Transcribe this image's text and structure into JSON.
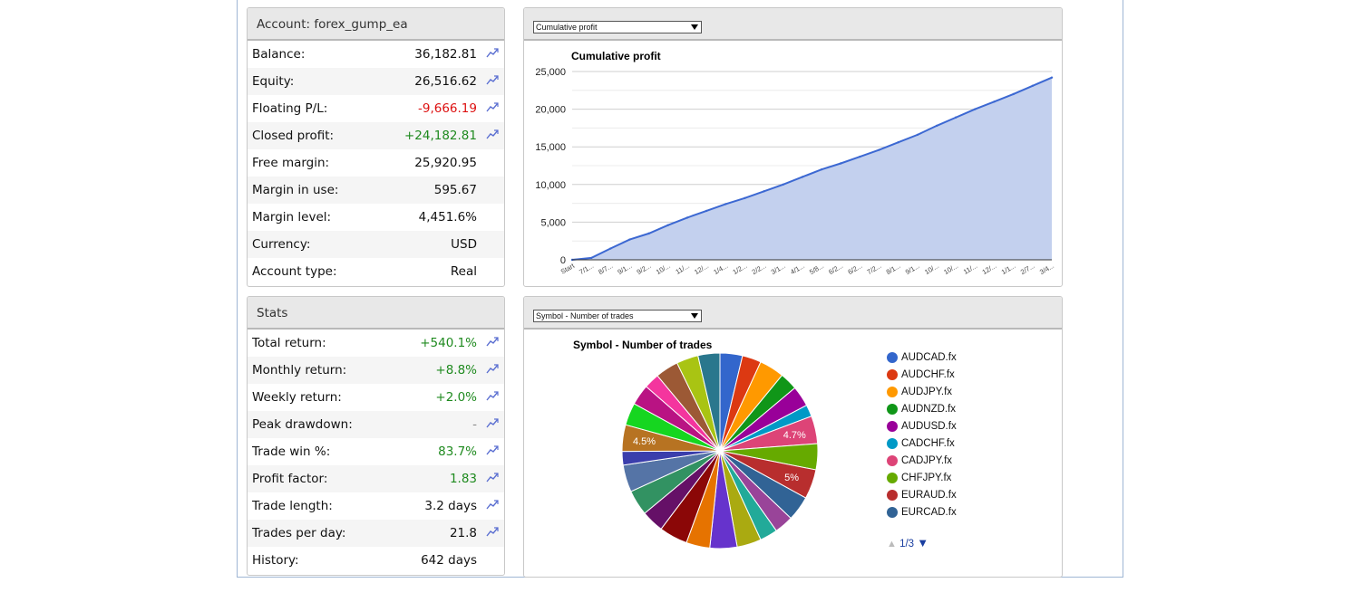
{
  "account": {
    "title": "Account: forex_gump_ea",
    "rows": [
      {
        "label": "Balance:",
        "value": "36,182.81",
        "tone": "",
        "icon": "chart-link-icon"
      },
      {
        "label": "Equity:",
        "value": "26,516.62",
        "tone": "",
        "icon": "chart-link-icon"
      },
      {
        "label": "Floating P/L:",
        "value": "-9,666.19",
        "tone": "neg",
        "icon": "chart-link-icon"
      },
      {
        "label": "Closed profit:",
        "value": "+24,182.81",
        "tone": "pos",
        "icon": "chart-link-icon"
      },
      {
        "label": "Free margin:",
        "value": "25,920.95",
        "tone": "",
        "icon": ""
      },
      {
        "label": "Margin in use:",
        "value": "595.67",
        "tone": "",
        "icon": ""
      },
      {
        "label": "Margin level:",
        "value": "4,451.6%",
        "tone": "",
        "icon": ""
      },
      {
        "label": "Currency:",
        "value": "USD",
        "tone": "",
        "icon": ""
      },
      {
        "label": "Account type:",
        "value": "Real",
        "tone": "",
        "icon": ""
      }
    ]
  },
  "stats": {
    "title": "Stats",
    "rows": [
      {
        "label": "Total return:",
        "value": "+540.1%",
        "tone": "pos",
        "icon": "chart-link-icon"
      },
      {
        "label": "Monthly return:",
        "value": "+8.8%",
        "tone": "pos",
        "icon": "chart-link-icon"
      },
      {
        "label": "Weekly return:",
        "value": "+2.0%",
        "tone": "pos",
        "icon": "chart-link-icon"
      },
      {
        "label": "Peak drawdown:",
        "value": "-",
        "tone": "dim",
        "icon": "chart-link-icon"
      },
      {
        "label": "Trade win %:",
        "value": "83.7%",
        "tone": "pos",
        "icon": "chart-link-icon"
      },
      {
        "label": "Profit factor:",
        "value": "1.83",
        "tone": "pos",
        "icon": "chart-link-icon"
      },
      {
        "label": "Trade length:",
        "value": "3.2 days",
        "tone": "",
        "icon": "chart-link-icon"
      },
      {
        "label": "Trades per day:",
        "value": "21.8",
        "tone": "",
        "icon": "chart-link-icon"
      },
      {
        "label": "History:",
        "value": "642 days",
        "tone": "",
        "icon": ""
      }
    ]
  },
  "colors": {
    "positive": "#1f8a1f",
    "negative": "#dd1111",
    "area_fill": "#c3d0ee",
    "area_line": "#3c68d2",
    "icon": "#5b6fd1"
  },
  "charts_ui": {
    "top_select_value": "Cumulative profit",
    "bottom_select_value": "Symbol - Number of trades",
    "pager_text": "1/3"
  },
  "chart_data": [
    {
      "type": "area",
      "title": "Cumulative profit",
      "xlabel": "",
      "ylabel": "",
      "ylim": [
        0,
        25000
      ],
      "yticks": [
        "0",
        "5,000",
        "10,000",
        "15,000",
        "20,000",
        "25,000"
      ],
      "x": [
        "Start",
        "7/1...",
        "8/7...",
        "9/1...",
        "9/2...",
        "10/...",
        "11/...",
        "12/...",
        "1/4...",
        "1/2...",
        "2/2...",
        "3/1...",
        "4/1...",
        "5/8...",
        "6/2...",
        "6/2...",
        "7/2...",
        "8/1...",
        "9/1...",
        "10/...",
        "10/...",
        "11/...",
        "12/...",
        "1/1...",
        "2/7...",
        "3/4..."
      ],
      "y": [
        0,
        250,
        1500,
        2700,
        3500,
        4600,
        5600,
        6500,
        7400,
        8200,
        9100,
        10000,
        11000,
        12000,
        12800,
        13700,
        14600,
        15600,
        16600,
        17800,
        18900,
        20000,
        21000,
        22000,
        23100,
        24200
      ],
      "grid": true,
      "legend": "none"
    },
    {
      "type": "pie",
      "title": "Symbol - Number of trades",
      "legend": "right",
      "legend_entries": [
        {
          "name": "AUDCAD.fx",
          "color": "#3366cc"
        },
        {
          "name": "AUDCHF.fx",
          "color": "#dc3912"
        },
        {
          "name": "AUDJPY.fx",
          "color": "#ff9900"
        },
        {
          "name": "AUDNZD.fx",
          "color": "#109618"
        },
        {
          "name": "AUDUSD.fx",
          "color": "#990099"
        },
        {
          "name": "CADCHF.fx",
          "color": "#0099c6"
        },
        {
          "name": "CADJPY.fx",
          "color": "#dd4477"
        },
        {
          "name": "CHFJPY.fx",
          "color": "#66aa00"
        },
        {
          "name": "EURAUD.fx",
          "color": "#b82e2e"
        },
        {
          "name": "EURCAD.fx",
          "color": "#316395"
        }
      ],
      "slice_values": [
        3.8,
        3.2,
        4.2,
        3.0,
        3.5,
        2.0,
        4.7,
        4.4,
        5.0,
        4.2,
        3.2,
        3.0,
        4.1,
        4.6,
        4.0,
        4.8,
        3.8,
        4.3,
        4.6,
        2.3,
        4.5,
        3.8,
        3.5,
        2.6,
        3.9,
        3.7,
        3.7
      ],
      "slice_colors": [
        "#3366cc",
        "#dc3912",
        "#ff9900",
        "#109618",
        "#990099",
        "#0099c6",
        "#dd4477",
        "#66aa00",
        "#b82e2e",
        "#316395",
        "#994499",
        "#22aa99",
        "#aaaa11",
        "#6633cc",
        "#e67300",
        "#8b0707",
        "#651067",
        "#329262",
        "#5574a6",
        "#3b3eac",
        "#b77322",
        "#16d620",
        "#b91383",
        "#f4359e",
        "#9c5935",
        "#a9c413",
        "#2a778d"
      ],
      "slice_labels": [
        {
          "index": 6,
          "text": "4.7%"
        },
        {
          "index": 8,
          "text": "5%"
        },
        {
          "index": 20,
          "text": "4.5%"
        }
      ]
    }
  ]
}
